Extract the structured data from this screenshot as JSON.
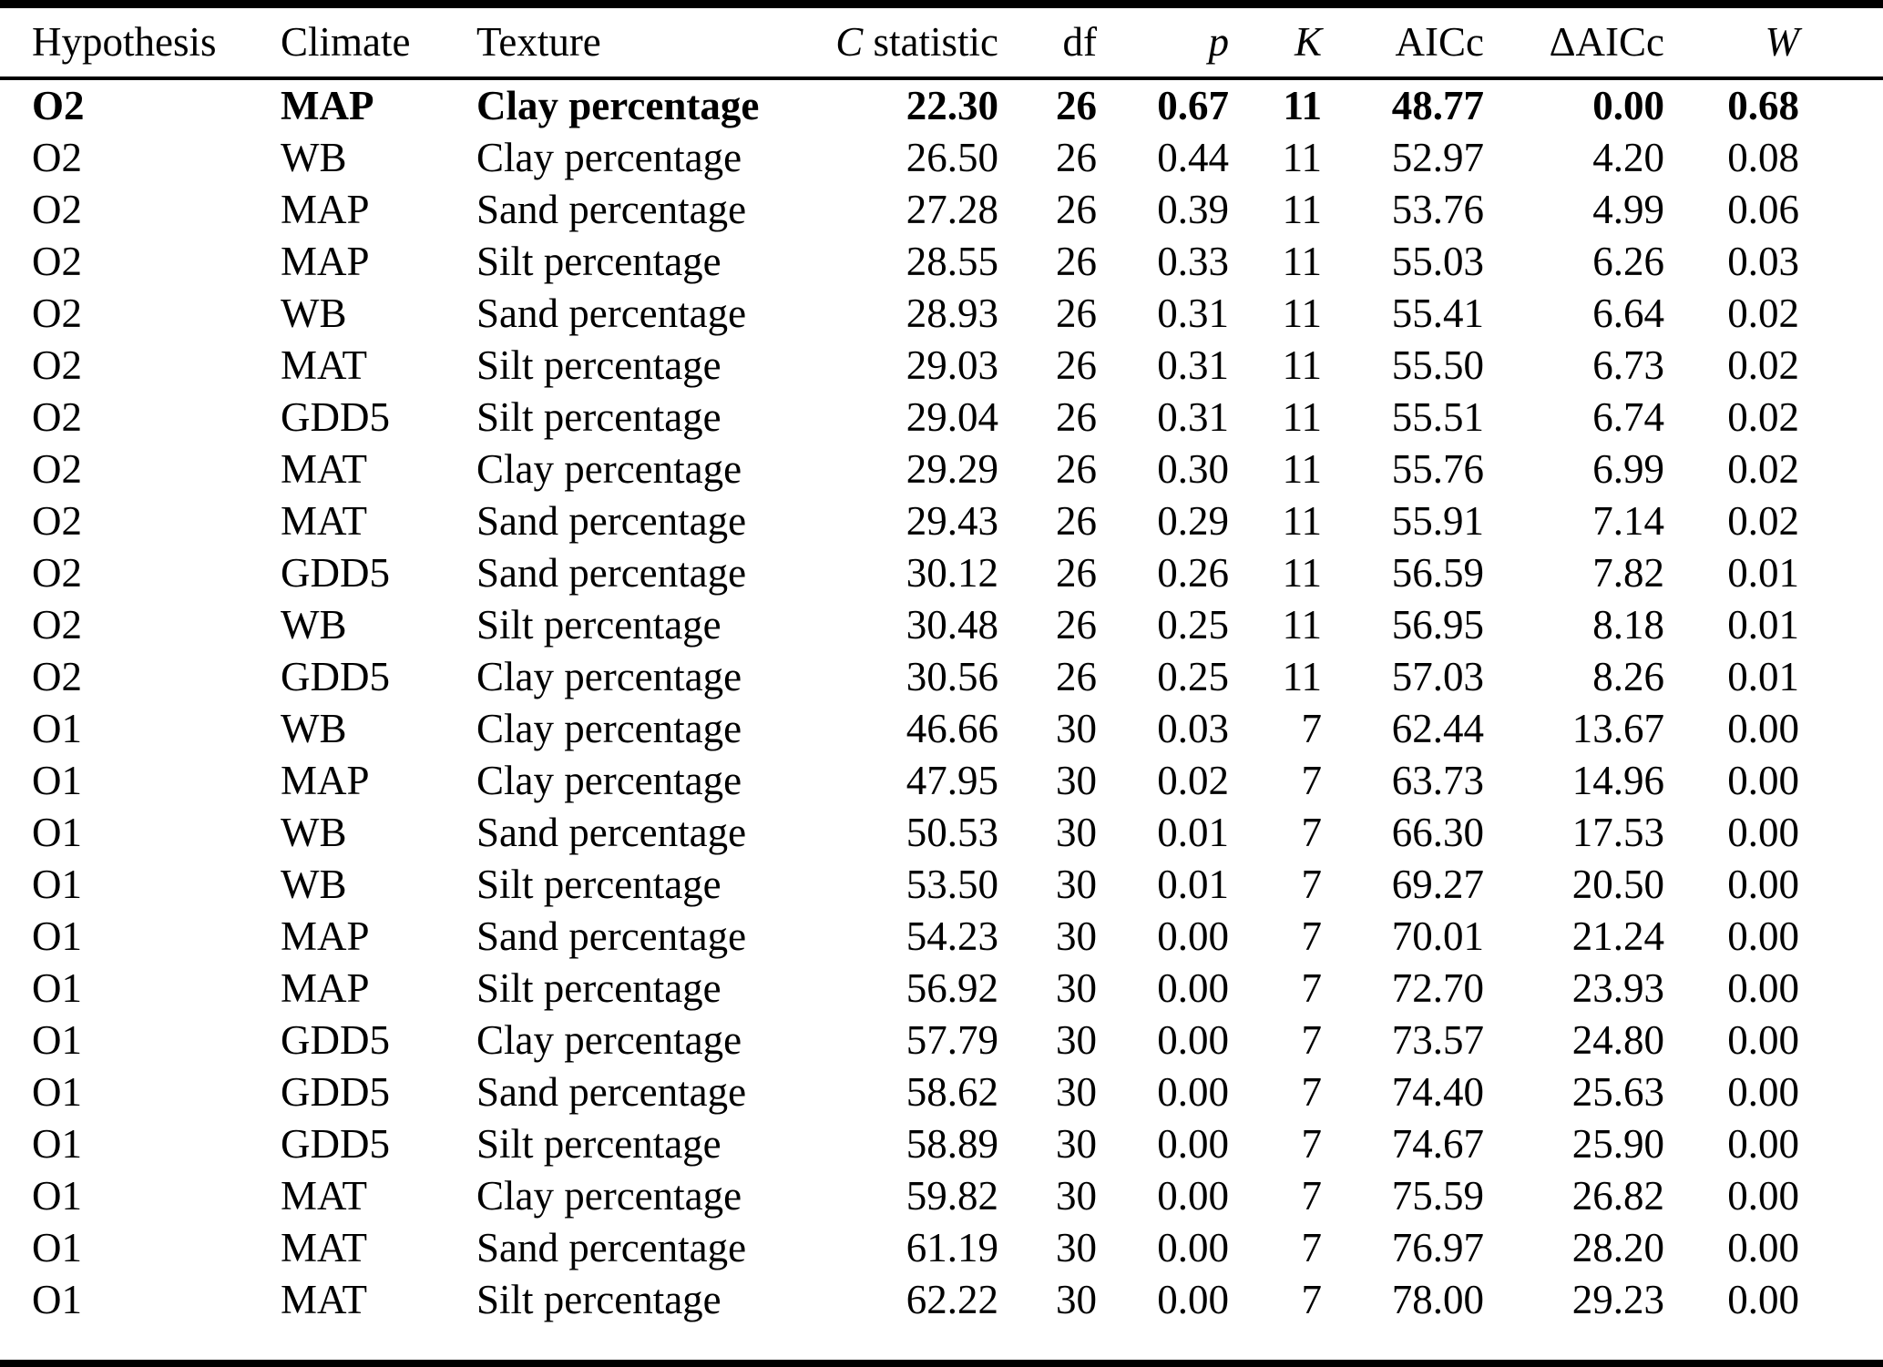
{
  "table": {
    "columns": [
      {
        "id": "hypothesis",
        "label": "Hypothesis",
        "align": "left"
      },
      {
        "id": "climate",
        "label": "Climate",
        "align": "left"
      },
      {
        "id": "texture",
        "label": "Texture",
        "align": "left"
      },
      {
        "id": "c-statistic",
        "label_italic": "C",
        "label_rest": " statistic",
        "align": "right"
      },
      {
        "id": "df",
        "label": "df",
        "align": "right"
      },
      {
        "id": "p",
        "label": "p",
        "align": "right",
        "italic": true
      },
      {
        "id": "k",
        "label": "K",
        "align": "right",
        "italic": true
      },
      {
        "id": "aicc",
        "label": "AICc",
        "align": "right"
      },
      {
        "id": "delta-aicc",
        "label": "ΔAICc",
        "align": "right"
      },
      {
        "id": "w",
        "label": "W",
        "align": "right",
        "italic": true
      }
    ],
    "rows": [
      {
        "bold": true,
        "cells": [
          "O2",
          "MAP",
          "Clay percentage",
          "22.30",
          "26",
          "0.67",
          "11",
          "48.77",
          "0.00",
          "0.68"
        ]
      },
      {
        "bold": false,
        "cells": [
          "O2",
          "WB",
          "Clay percentage",
          "26.50",
          "26",
          "0.44",
          "11",
          "52.97",
          "4.20",
          "0.08"
        ]
      },
      {
        "bold": false,
        "cells": [
          "O2",
          "MAP",
          "Sand percentage",
          "27.28",
          "26",
          "0.39",
          "11",
          "53.76",
          "4.99",
          "0.06"
        ]
      },
      {
        "bold": false,
        "cells": [
          "O2",
          "MAP",
          "Silt percentage",
          "28.55",
          "26",
          "0.33",
          "11",
          "55.03",
          "6.26",
          "0.03"
        ]
      },
      {
        "bold": false,
        "cells": [
          "O2",
          "WB",
          "Sand percentage",
          "28.93",
          "26",
          "0.31",
          "11",
          "55.41",
          "6.64",
          "0.02"
        ]
      },
      {
        "bold": false,
        "cells": [
          "O2",
          "MAT",
          "Silt percentage",
          "29.03",
          "26",
          "0.31",
          "11",
          "55.50",
          "6.73",
          "0.02"
        ]
      },
      {
        "bold": false,
        "cells": [
          "O2",
          "GDD5",
          "Silt percentage",
          "29.04",
          "26",
          "0.31",
          "11",
          "55.51",
          "6.74",
          "0.02"
        ]
      },
      {
        "bold": false,
        "cells": [
          "O2",
          "MAT",
          "Clay percentage",
          "29.29",
          "26",
          "0.30",
          "11",
          "55.76",
          "6.99",
          "0.02"
        ]
      },
      {
        "bold": false,
        "cells": [
          "O2",
          "MAT",
          "Sand percentage",
          "29.43",
          "26",
          "0.29",
          "11",
          "55.91",
          "7.14",
          "0.02"
        ]
      },
      {
        "bold": false,
        "cells": [
          "O2",
          "GDD5",
          "Sand percentage",
          "30.12",
          "26",
          "0.26",
          "11",
          "56.59",
          "7.82",
          "0.01"
        ]
      },
      {
        "bold": false,
        "cells": [
          "O2",
          "WB",
          "Silt percentage",
          "30.48",
          "26",
          "0.25",
          "11",
          "56.95",
          "8.18",
          "0.01"
        ]
      },
      {
        "bold": false,
        "cells": [
          "O2",
          "GDD5",
          "Clay percentage",
          "30.56",
          "26",
          "0.25",
          "11",
          "57.03",
          "8.26",
          "0.01"
        ]
      },
      {
        "bold": false,
        "cells": [
          "O1",
          "WB",
          "Clay percentage",
          "46.66",
          "30",
          "0.03",
          "7",
          "62.44",
          "13.67",
          "0.00"
        ]
      },
      {
        "bold": false,
        "cells": [
          "O1",
          "MAP",
          "Clay percentage",
          "47.95",
          "30",
          "0.02",
          "7",
          "63.73",
          "14.96",
          "0.00"
        ]
      },
      {
        "bold": false,
        "cells": [
          "O1",
          "WB",
          "Sand percentage",
          "50.53",
          "30",
          "0.01",
          "7",
          "66.30",
          "17.53",
          "0.00"
        ]
      },
      {
        "bold": false,
        "cells": [
          "O1",
          "WB",
          "Silt percentage",
          "53.50",
          "30",
          "0.01",
          "7",
          "69.27",
          "20.50",
          "0.00"
        ]
      },
      {
        "bold": false,
        "cells": [
          "O1",
          "MAP",
          "Sand percentage",
          "54.23",
          "30",
          "0.00",
          "7",
          "70.01",
          "21.24",
          "0.00"
        ]
      },
      {
        "bold": false,
        "cells": [
          "O1",
          "MAP",
          "Silt percentage",
          "56.92",
          "30",
          "0.00",
          "7",
          "72.70",
          "23.93",
          "0.00"
        ]
      },
      {
        "bold": false,
        "cells": [
          "O1",
          "GDD5",
          "Clay percentage",
          "57.79",
          "30",
          "0.00",
          "7",
          "73.57",
          "24.80",
          "0.00"
        ]
      },
      {
        "bold": false,
        "cells": [
          "O1",
          "GDD5",
          "Sand percentage",
          "58.62",
          "30",
          "0.00",
          "7",
          "74.40",
          "25.63",
          "0.00"
        ]
      },
      {
        "bold": false,
        "cells": [
          "O1",
          "GDD5",
          "Silt percentage",
          "58.89",
          "30",
          "0.00",
          "7",
          "74.67",
          "25.90",
          "0.00"
        ]
      },
      {
        "bold": false,
        "cells": [
          "O1",
          "MAT",
          "Clay percentage",
          "59.82",
          "30",
          "0.00",
          "7",
          "75.59",
          "26.82",
          "0.00"
        ]
      },
      {
        "bold": false,
        "cells": [
          "O1",
          "MAT",
          "Sand percentage",
          "61.19",
          "30",
          "0.00",
          "7",
          "76.97",
          "28.20",
          "0.00"
        ]
      },
      {
        "bold": false,
        "cells": [
          "O1",
          "MAT",
          "Silt percentage",
          "62.22",
          "30",
          "0.00",
          "7",
          "78.00",
          "29.23",
          "0.00"
        ]
      }
    ]
  }
}
